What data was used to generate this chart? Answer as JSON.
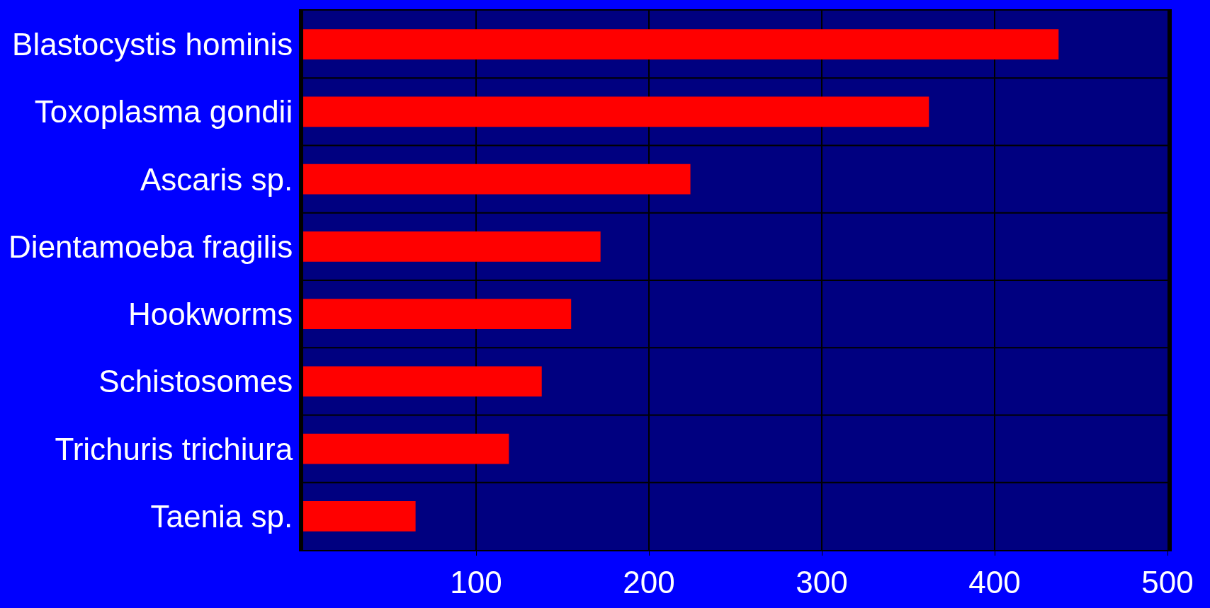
{
  "chart_data": {
    "type": "bar",
    "orientation": "horizontal",
    "categories": [
      "Blastocystis hominis",
      "Toxoplasma gondii",
      "Ascaris sp.",
      "Dientamoeba fragilis",
      "Hookworms",
      "Schistosomes",
      "Trichuris trichiura",
      "Taenia sp."
    ],
    "values": [
      437,
      362,
      224,
      172,
      155,
      138,
      119,
      65
    ],
    "color": "#ff0000",
    "xlim": [
      0,
      500
    ],
    "xticks": [
      100,
      200,
      300,
      400,
      500
    ],
    "grid": true
  }
}
